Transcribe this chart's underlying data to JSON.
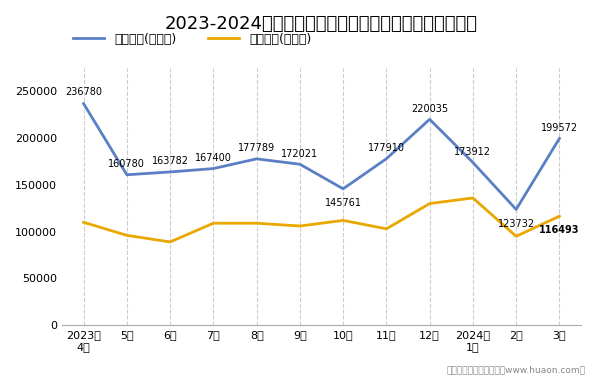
{
  "title": "2023-2024年长沙市商品收发货人所在地进、出口额统计",
  "categories": [
    "2023年\n4月",
    "5月",
    "6月",
    "7月",
    "8月",
    "9月",
    "10月",
    "11月",
    "12月",
    "2024年\n1月",
    "2月",
    "3月"
  ],
  "export_values": [
    236780,
    160780,
    163782,
    167400,
    177789,
    172021,
    145761,
    177910,
    220035,
    173912,
    123732,
    199572
  ],
  "import_values": [
    110000,
    96000,
    89000,
    109000,
    109000,
    106000,
    112000,
    103000,
    130000,
    136000,
    95000,
    116493
  ],
  "export_label": "出口总额(万美元)",
  "import_label": "进口总额(万美元)",
  "export_color": "#5b7fc5",
  "import_color": "#e8a800",
  "yticks": [
    0,
    50000,
    100000,
    150000,
    200000,
    250000
  ],
  "footer": "制图：华经产业研究院（www.huaon.com）",
  "bg_color": "#ffffff",
  "title_fontsize": 13,
  "legend_fontsize": 9,
  "annot_fontsize": 7,
  "tick_fontsize": 8
}
